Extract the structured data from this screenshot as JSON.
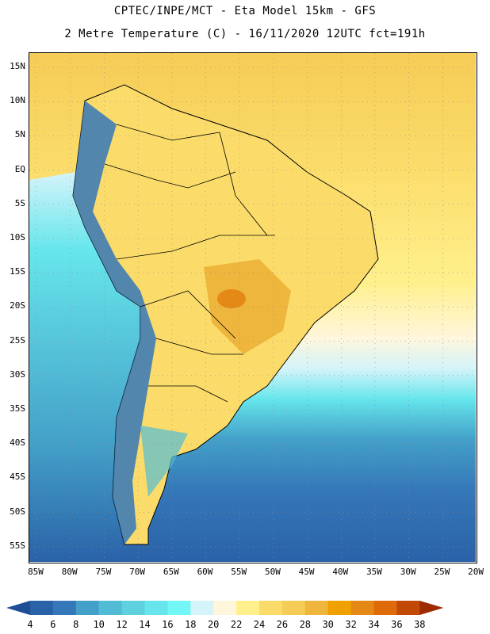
{
  "header": {
    "line1": "CPTEC/INPE/MCT -  Eta Model 15km - GFS",
    "line2": "2 Metre Temperature (C) - 16/11/2020 12UTC fct=191h"
  },
  "axes": {
    "lat_labels": [
      "15N",
      "10N",
      "5N",
      "EQ",
      "5S",
      "10S",
      "15S",
      "20S",
      "25S",
      "30S",
      "35S",
      "40S",
      "45S",
      "50S",
      "55S"
    ],
    "lon_labels": [
      "85W",
      "80W",
      "75W",
      "70W",
      "65W",
      "60W",
      "55W",
      "50W",
      "45W",
      "40W",
      "35W",
      "30W",
      "25W",
      "20W"
    ]
  },
  "colorbar": {
    "labels": [
      "4",
      "6",
      "8",
      "10",
      "12",
      "14",
      "16",
      "18",
      "20",
      "22",
      "24",
      "26",
      "28",
      "30",
      "32",
      "34",
      "36",
      "38"
    ],
    "colors": [
      "#1f4e96",
      "#2a62a8",
      "#3577b8",
      "#43a0c8",
      "#52bcd6",
      "#5fd0de",
      "#66e6ec",
      "#72f6f6",
      "#d4f4fa",
      "#fff6dc",
      "#fff08c",
      "#fbdc6a",
      "#f5cc56",
      "#eeb63c",
      "#f0a000",
      "#e48816",
      "#de6a0a",
      "#c24806",
      "#9e2a00"
    ]
  },
  "colors": {
    "ocean_north": "#f5cc56",
    "ocean_south": "#2a62a8",
    "land_warm": "#fbdc6a",
    "land_hot": "#eeb63c",
    "andes_cold": "#3577b8",
    "border": "#000000"
  }
}
